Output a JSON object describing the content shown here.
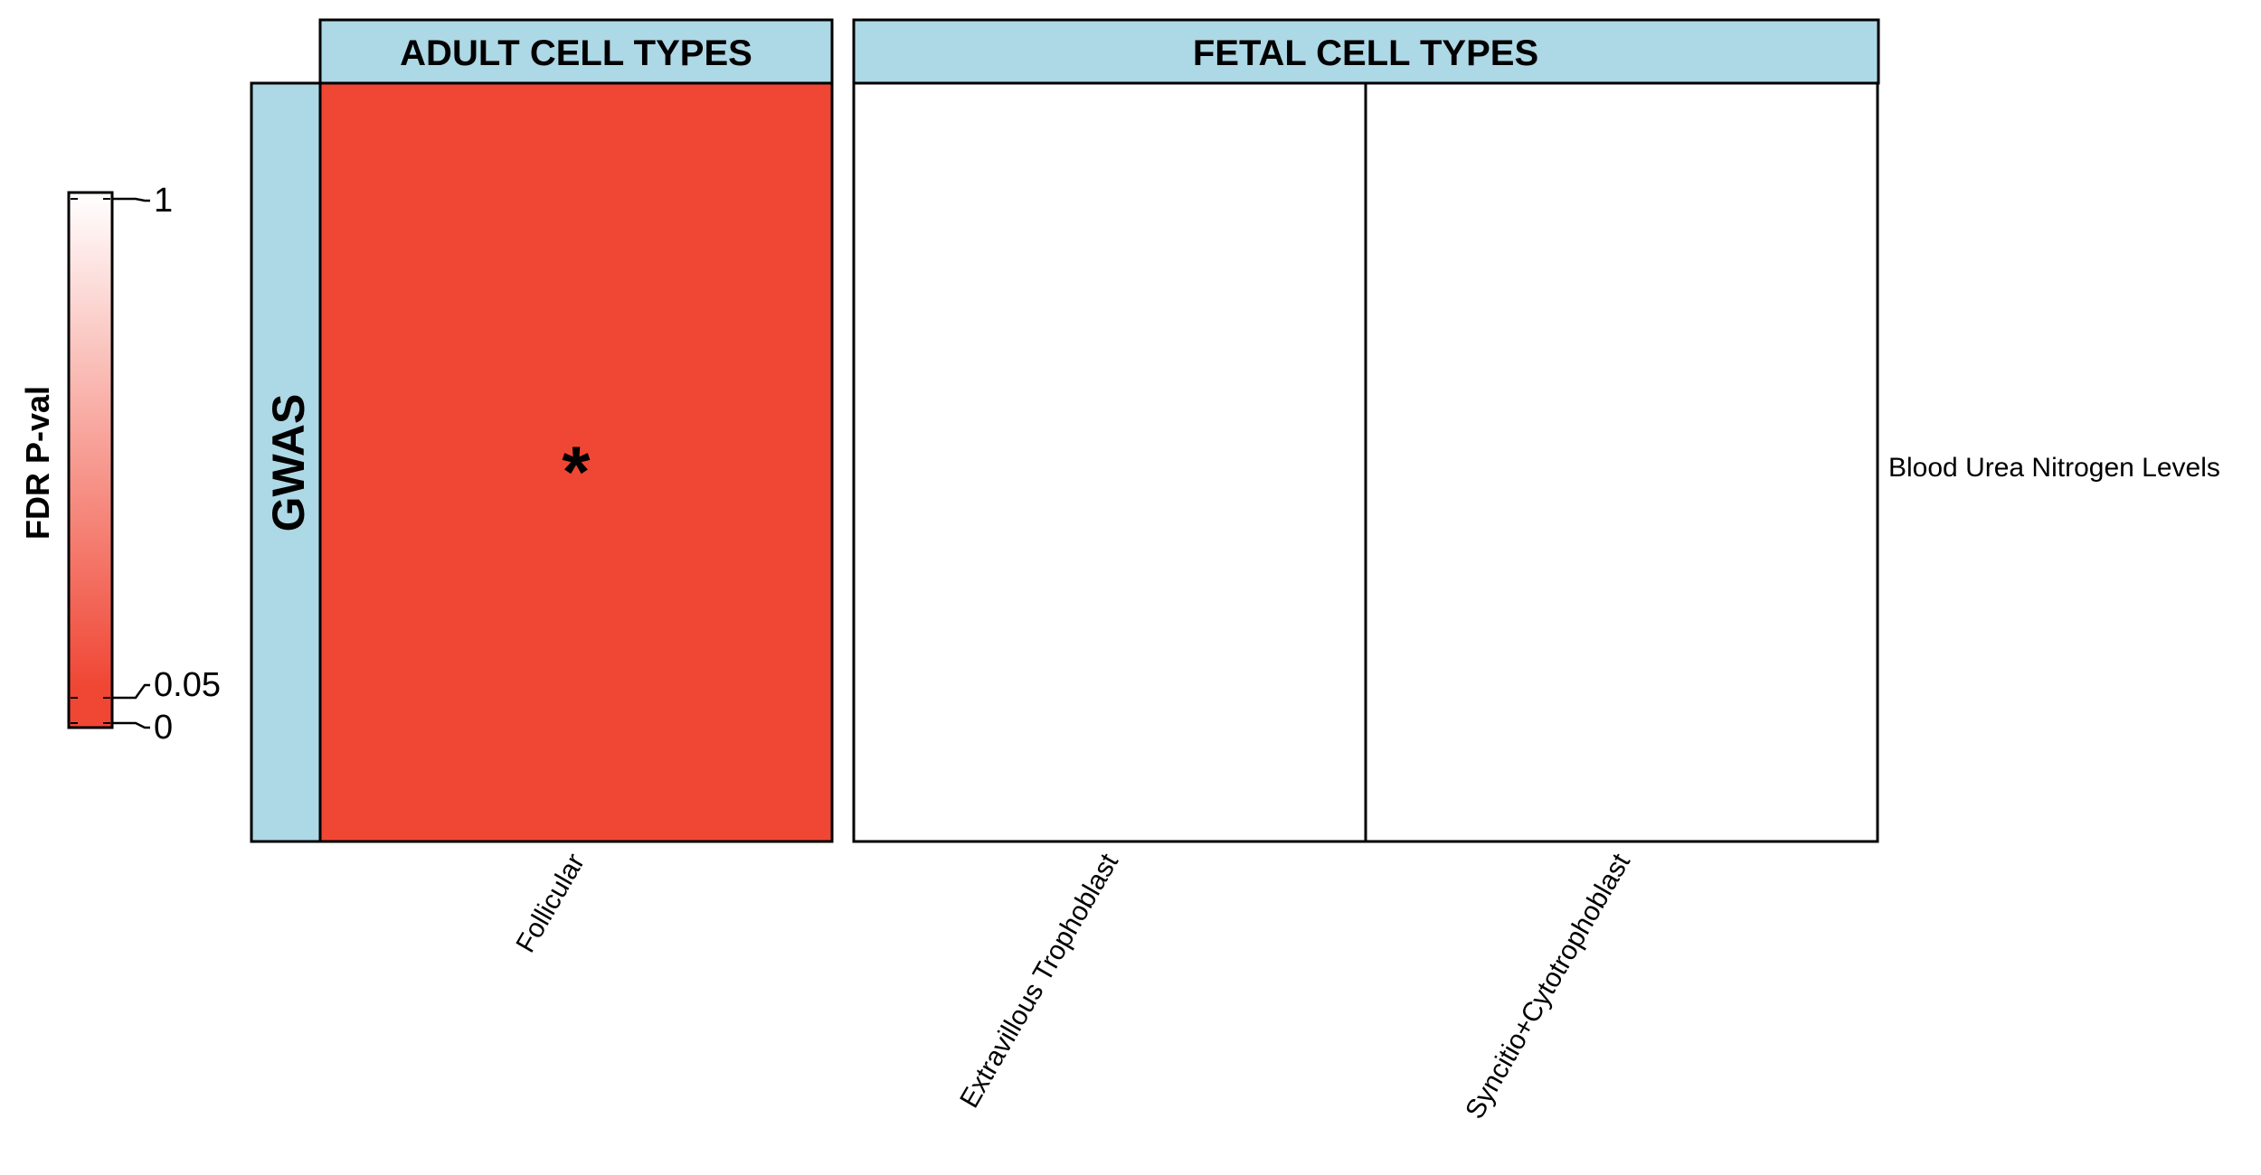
{
  "chart_data": {
    "type": "heatmap",
    "row_facet_label": "GWAS",
    "rows": [
      "Blood Urea Nitrogen Levels"
    ],
    "facets": [
      {
        "label": "ADULT CELL TYPES",
        "columns": [
          "Follicular"
        ]
      },
      {
        "label": "FETAL CELL TYPES",
        "columns": [
          "Extravillous Trophoblast",
          "Syncitio+Cytotrophoblast"
        ]
      }
    ],
    "cells": [
      {
        "row": "Blood Urea Nitrogen Levels",
        "column": "Follicular",
        "fdr_p": 0.0,
        "significant": true,
        "marker": "*"
      },
      {
        "row": "Blood Urea Nitrogen Levels",
        "column": "Extravillous Trophoblast",
        "fdr_p": 1.0,
        "significant": false,
        "marker": ""
      },
      {
        "row": "Blood Urea Nitrogen Levels",
        "column": "Syncitio+Cytotrophoblast",
        "fdr_p": 1.0,
        "significant": false,
        "marker": ""
      }
    ],
    "colorbar": {
      "title": "FDR P-val",
      "ticks": [
        {
          "value": 1,
          "label": "1"
        },
        {
          "value": 0.05,
          "label": "0.05"
        },
        {
          "value": 0,
          "label": "0"
        }
      ],
      "colors": {
        "low": "#f04735",
        "high": "#ffffff"
      }
    },
    "strip_color": "#add8e6"
  }
}
